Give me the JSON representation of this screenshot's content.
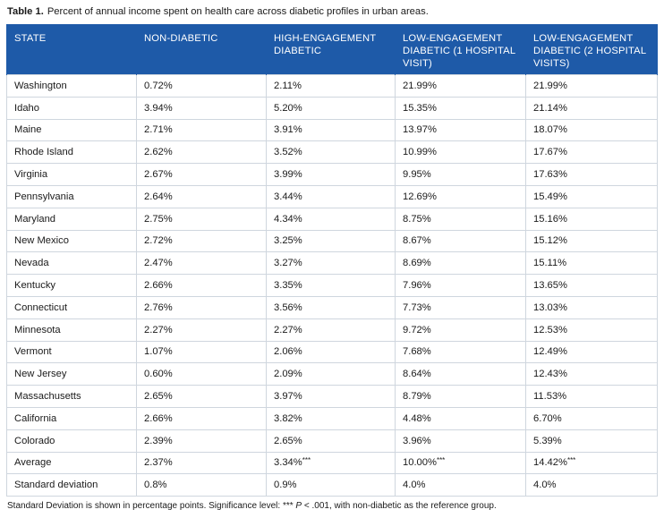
{
  "caption": {
    "label": "Table 1.",
    "text": "Percent of annual income spent on health care across diabetic profiles in urban areas."
  },
  "table": {
    "headers": [
      "STATE",
      "NON-DIABETIC",
      "HIGH-ENGAGEMENT DIABETIC",
      "LOW-ENGAGEMENT DIABETIC (1 HOSPITAL VISIT)",
      "LOW-ENGAGEMENT DIABETIC (2 HOSPITAL VISITS)"
    ],
    "rows": [
      {
        "state": "Washington",
        "non_diabetic": "0.72%",
        "high_engagement": "2.11%",
        "low_1": "21.99%",
        "low_2": "21.99%"
      },
      {
        "state": "Idaho",
        "non_diabetic": "3.94%",
        "high_engagement": "5.20%",
        "low_1": "15.35%",
        "low_2": "21.14%"
      },
      {
        "state": "Maine",
        "non_diabetic": "2.71%",
        "high_engagement": "3.91%",
        "low_1": "13.97%",
        "low_2": "18.07%"
      },
      {
        "state": "Rhode Island",
        "non_diabetic": "2.62%",
        "high_engagement": "3.52%",
        "low_1": "10.99%",
        "low_2": "17.67%"
      },
      {
        "state": "Virginia",
        "non_diabetic": "2.67%",
        "high_engagement": "3.99%",
        "low_1": "9.95%",
        "low_2": "17.63%"
      },
      {
        "state": "Pennsylvania",
        "non_diabetic": "2.64%",
        "high_engagement": "3.44%",
        "low_1": "12.69%",
        "low_2": "15.49%"
      },
      {
        "state": "Maryland",
        "non_diabetic": "2.75%",
        "high_engagement": "4.34%",
        "low_1": "8.75%",
        "low_2": "15.16%"
      },
      {
        "state": "New Mexico",
        "non_diabetic": "2.72%",
        "high_engagement": "3.25%",
        "low_1": "8.67%",
        "low_2": "15.12%"
      },
      {
        "state": "Nevada",
        "non_diabetic": "2.47%",
        "high_engagement": "3.27%",
        "low_1": "8.69%",
        "low_2": "15.11%"
      },
      {
        "state": "Kentucky",
        "non_diabetic": "2.66%",
        "high_engagement": "3.35%",
        "low_1": "7.96%",
        "low_2": "13.65%"
      },
      {
        "state": "Connecticut",
        "non_diabetic": "2.76%",
        "high_engagement": "3.56%",
        "low_1": "7.73%",
        "low_2": "13.03%"
      },
      {
        "state": "Minnesota",
        "non_diabetic": "2.27%",
        "high_engagement": "2.27%",
        "low_1": "9.72%",
        "low_2": "12.53%"
      },
      {
        "state": "Vermont",
        "non_diabetic": "1.07%",
        "high_engagement": "2.06%",
        "low_1": "7.68%",
        "low_2": "12.49%"
      },
      {
        "state": "New Jersey",
        "non_diabetic": "0.60%",
        "high_engagement": "2.09%",
        "low_1": "8.64%",
        "low_2": "12.43%"
      },
      {
        "state": "Massachusetts",
        "non_diabetic": "2.65%",
        "high_engagement": "3.97%",
        "low_1": "8.79%",
        "low_2": "11.53%"
      },
      {
        "state": "California",
        "non_diabetic": "2.66%",
        "high_engagement": "3.82%",
        "low_1": "4.48%",
        "low_2": "6.70%"
      },
      {
        "state": "Colorado",
        "non_diabetic": "2.39%",
        "high_engagement": "2.65%",
        "low_1": "3.96%",
        "low_2": "5.39%"
      }
    ],
    "average": {
      "label": "Average",
      "non_diabetic": "2.37%",
      "high_engagement": "3.34%",
      "high_engagement_sig": "***",
      "low_1": "10.00%",
      "low_1_sig": "***",
      "low_2": "14.42%",
      "low_2_sig": "***"
    },
    "std_dev": {
      "label": "Standard deviation",
      "non_diabetic": "0.8%",
      "high_engagement": "0.9%",
      "low_1": "4.0%",
      "low_2": "4.0%"
    }
  },
  "footnote": {
    "text_before": "Standard Deviation is shown in percentage points. Significance level: ***",
    "p_symbol": "P",
    "text_after": "< .001, with non-diabetic as the reference group."
  },
  "colors": {
    "header_bg": "#1e5aa8",
    "header_text": "#ffffff",
    "grid": "#cfd6de"
  }
}
